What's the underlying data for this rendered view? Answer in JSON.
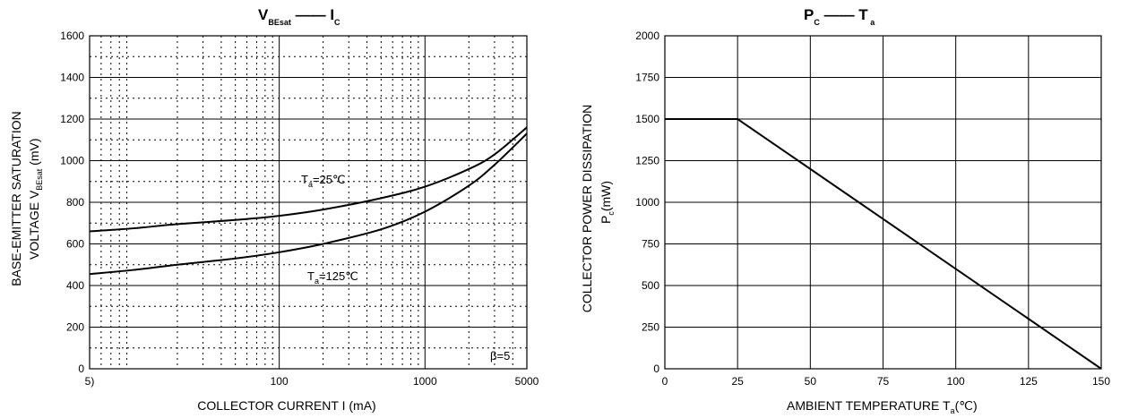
{
  "chart_data": [
    {
      "type": "line",
      "title_main": "V",
      "title_main_sub": "BEsat",
      "title_dash": "——",
      "title_right": "I",
      "title_right_sub": "C",
      "xlabel": "COLLECTOR CURRENT I (mA)",
      "ylabel_line1": "BASE-EMITTER SATURATION",
      "ylabel_line2": "VOLTAGE",
      "ylabel_symbol": "V",
      "ylabel_symbol_sub": "BEsat",
      "ylabel_unit": "(mV)",
      "x_scale": "log",
      "xlim": [
        5,
        5000
      ],
      "ylim": [
        0,
        1600
      ],
      "x_ticks": [
        5,
        100,
        1000,
        5000
      ],
      "x_tick_labels": [
        "5)",
        "100",
        "1000",
        "5000"
      ],
      "y_ticks": [
        0,
        200,
        400,
        600,
        800,
        1000,
        1200,
        1400,
        1600
      ],
      "y_tick_labels": [
        "0",
        "200",
        "400",
        "600",
        "800",
        "1000",
        "1200",
        "1400",
        "1600"
      ],
      "grid": true,
      "series": [
        {
          "name": "Ta=25℃",
          "label_prefix": "T",
          "label_sub": "a",
          "label_suffix": "=25℃",
          "x": [
            5,
            10,
            20,
            50,
            100,
            200,
            500,
            1000,
            2000,
            3000,
            5000
          ],
          "y": [
            660,
            675,
            695,
            715,
            735,
            765,
            820,
            875,
            960,
            1030,
            1160
          ]
        },
        {
          "name": "Ta=125℃",
          "label_prefix": "T",
          "label_sub": "a",
          "label_suffix": "=125℃",
          "x": [
            5,
            10,
            20,
            50,
            100,
            200,
            500,
            1000,
            2000,
            3000,
            5000
          ],
          "y": [
            455,
            475,
            500,
            530,
            560,
            600,
            670,
            755,
            880,
            980,
            1130
          ]
        }
      ],
      "annotation": "β=5"
    },
    {
      "type": "line",
      "title_main": "P",
      "title_main_sub": "C",
      "title_dash": "——",
      "title_right": "T",
      "title_right_sub": "a",
      "xlabel_prefix": "AMBIENT TEMPERATURE T",
      "xlabel_sub": "a",
      "xlabel_suffix": "(℃)",
      "ylabel_line1": "COLLECTOR POWER DISSIPATION",
      "ylabel_symbol": "P",
      "ylabel_symbol_sub": "c",
      "ylabel_unit": "(mW)",
      "xlim": [
        0,
        150
      ],
      "ylim": [
        0,
        2000
      ],
      "x_ticks": [
        0,
        25,
        50,
        75,
        100,
        125,
        150
      ],
      "x_tick_labels": [
        "0",
        "25",
        "50",
        "75",
        "100",
        "125",
        "150"
      ],
      "y_ticks": [
        0,
        250,
        500,
        750,
        1000,
        1250,
        1500,
        1750,
        2000
      ],
      "y_tick_labels": [
        "0",
        "250",
        "500",
        "750",
        "1000",
        "1250",
        "1500",
        "1750",
        "2000"
      ],
      "grid": true,
      "series": [
        {
          "x": [
            0,
            25,
            150
          ],
          "y": [
            1500,
            1500,
            0
          ]
        }
      ]
    }
  ]
}
